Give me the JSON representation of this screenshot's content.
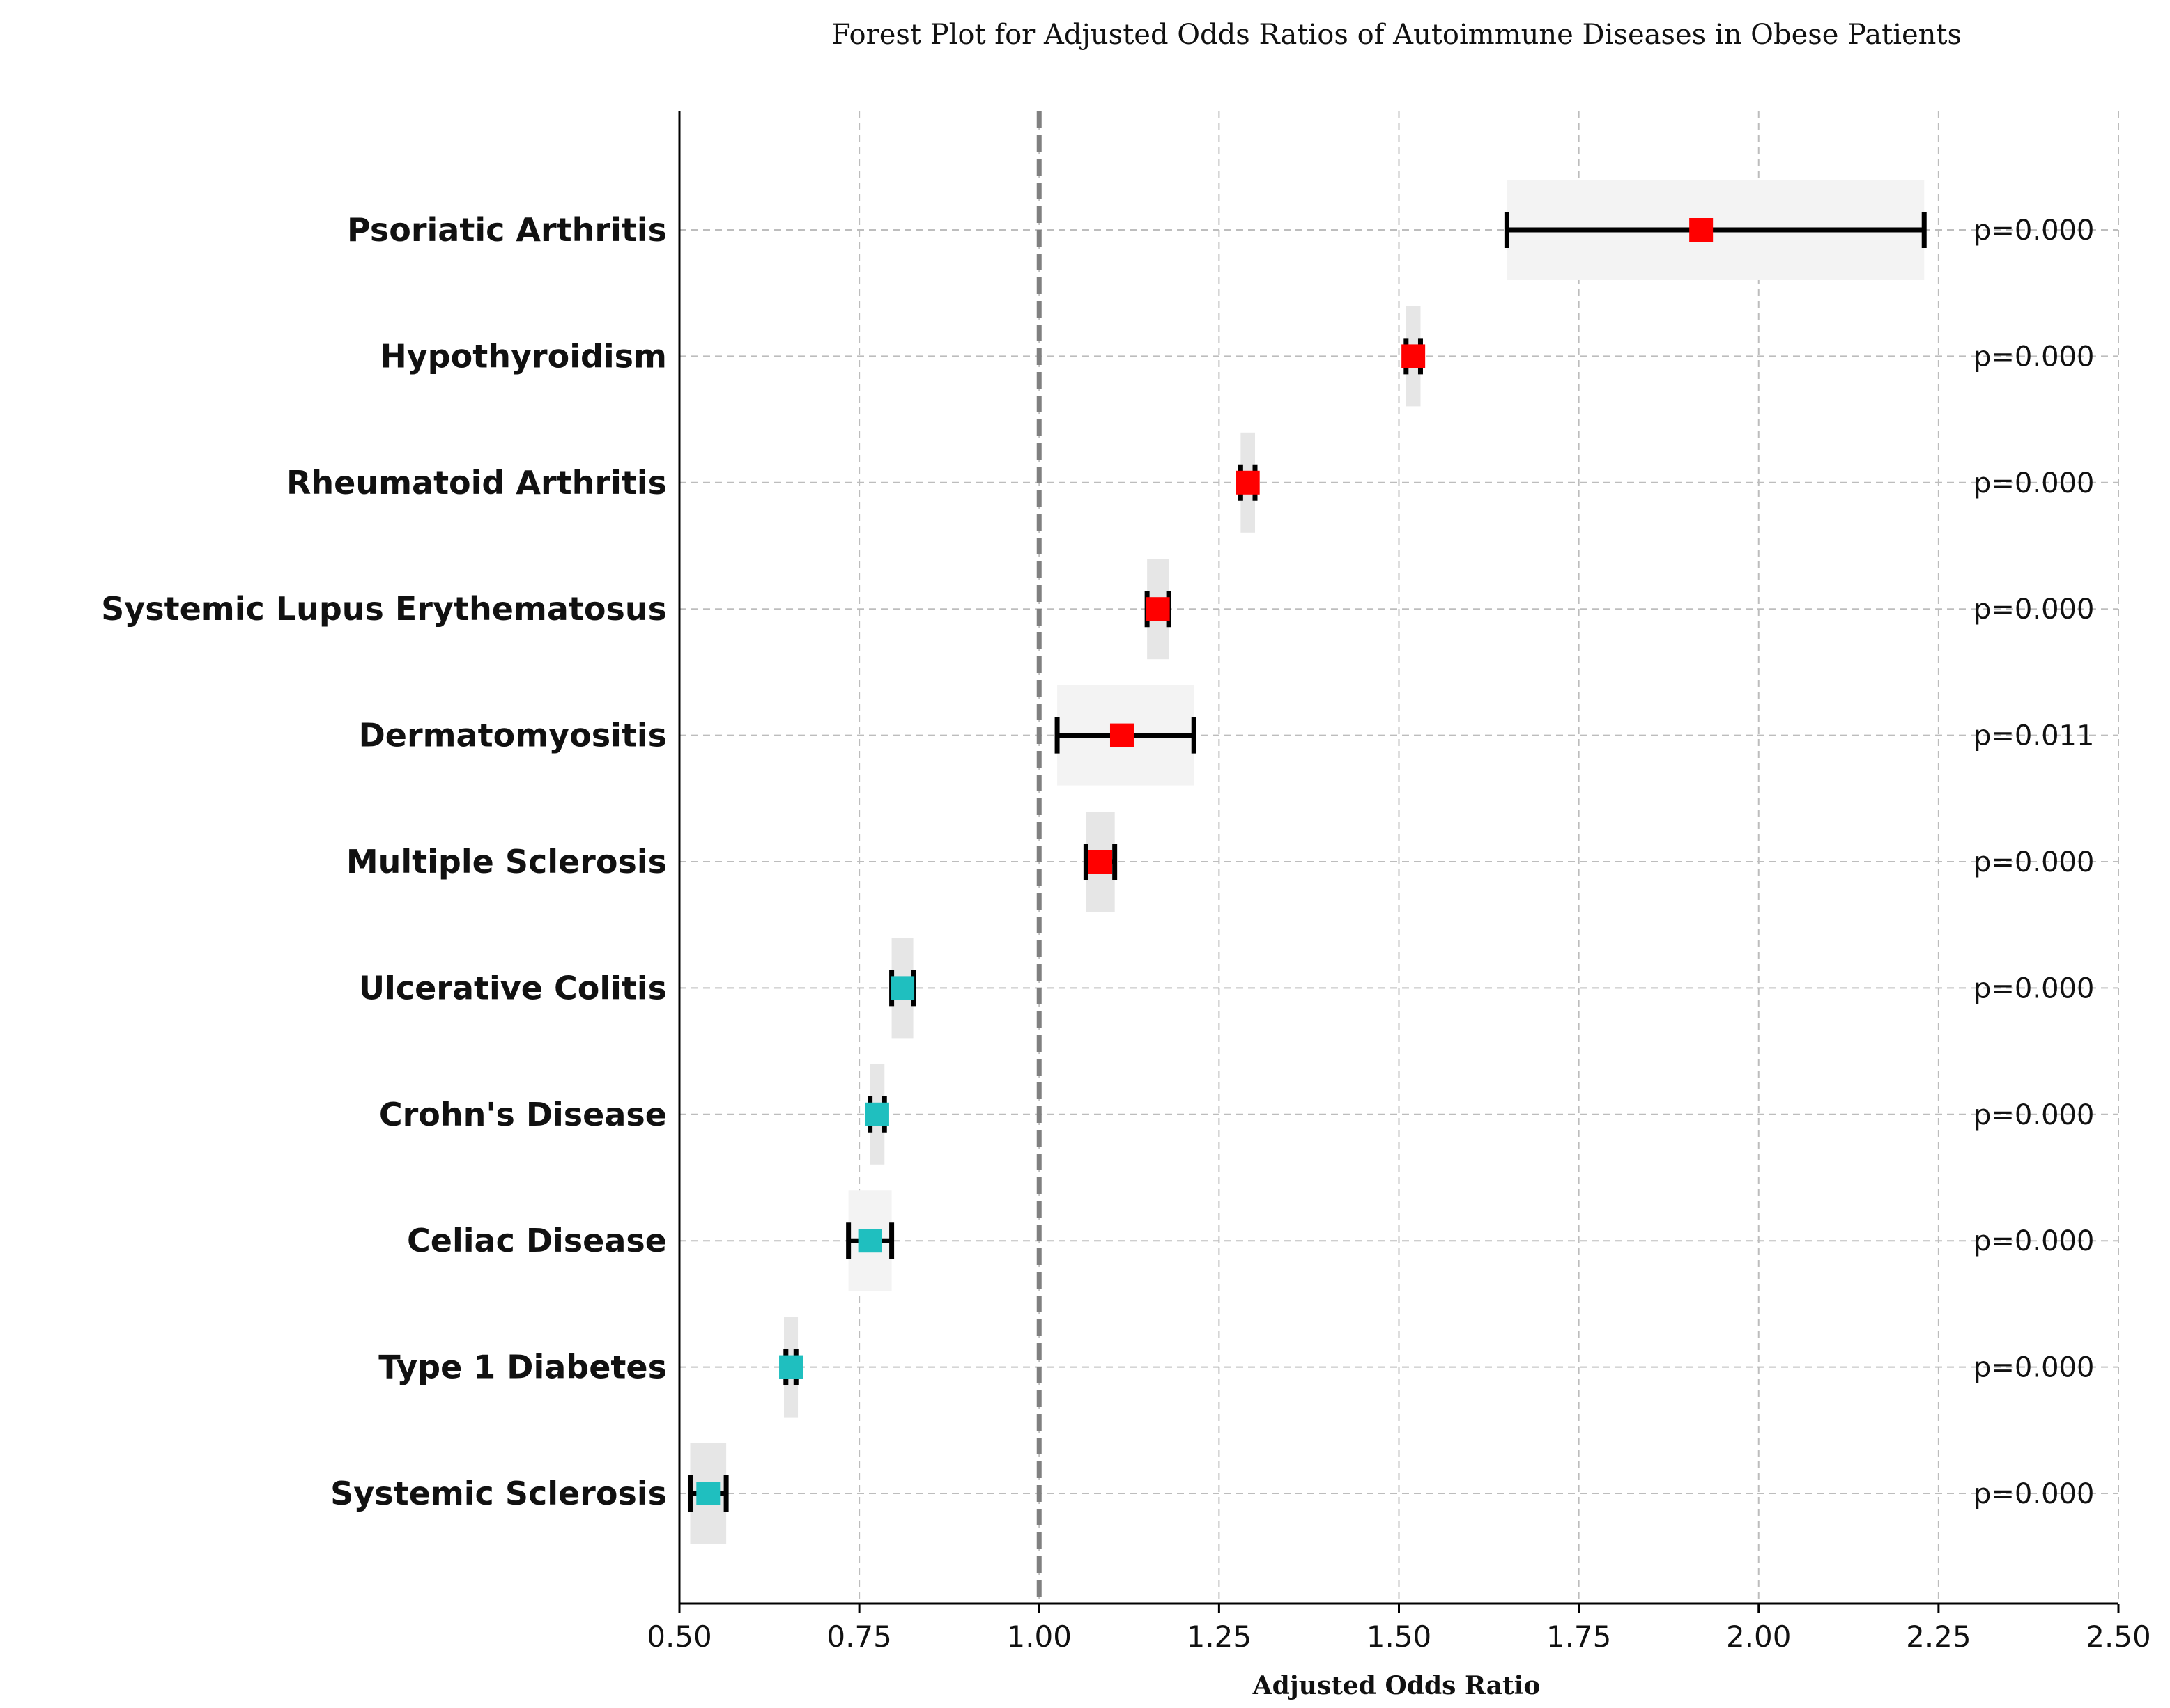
{
  "chart_data": {
    "type": "forest",
    "title": "Forest Plot for Adjusted Odds Ratios of Autoimmune Diseases in Obese Patients",
    "xlabel": "Adjusted Odds Ratio",
    "xlim": [
      0.5,
      2.5
    ],
    "xticks": [
      "0.50",
      "0.75",
      "1.00",
      "1.25",
      "1.50",
      "1.75",
      "2.00",
      "2.25",
      "2.50"
    ],
    "reference_line": 1.0,
    "grid": true,
    "colors": {
      "above_one": "#ff0000",
      "below_one": "#1fbfbf",
      "reference": "#808080",
      "band": "#f0f0f0"
    },
    "rows": [
      {
        "label": "Psoriatic Arthritis",
        "or": 1.92,
        "lo": 1.65,
        "hi": 2.23,
        "p": "p=0.000"
      },
      {
        "label": "Hypothyroidism",
        "or": 1.52,
        "lo": 1.51,
        "hi": 1.53,
        "p": "p=0.000"
      },
      {
        "label": "Rheumatoid Arthritis",
        "or": 1.29,
        "lo": 1.28,
        "hi": 1.3,
        "p": "p=0.000"
      },
      {
        "label": "Systemic Lupus Erythematosus",
        "or": 1.165,
        "lo": 1.15,
        "hi": 1.18,
        "p": "p=0.000"
      },
      {
        "label": "Dermatomyositis",
        "or": 1.115,
        "lo": 1.025,
        "hi": 1.215,
        "p": "p=0.011"
      },
      {
        "label": "Multiple Sclerosis",
        "or": 1.085,
        "lo": 1.065,
        "hi": 1.105,
        "p": "p=0.000"
      },
      {
        "label": "Ulcerative Colitis",
        "or": 0.81,
        "lo": 0.795,
        "hi": 0.825,
        "p": "p=0.000"
      },
      {
        "label": "Crohn's Disease",
        "or": 0.775,
        "lo": 0.765,
        "hi": 0.785,
        "p": "p=0.000"
      },
      {
        "label": "Celiac Disease",
        "or": 0.765,
        "lo": 0.735,
        "hi": 0.795,
        "p": "p=0.000"
      },
      {
        "label": "Type 1 Diabetes",
        "or": 0.655,
        "lo": 0.648,
        "hi": 0.662,
        "p": "p=0.000"
      },
      {
        "label": "Systemic Sclerosis",
        "or": 0.54,
        "lo": 0.515,
        "hi": 0.565,
        "p": "p=0.000"
      }
    ]
  }
}
